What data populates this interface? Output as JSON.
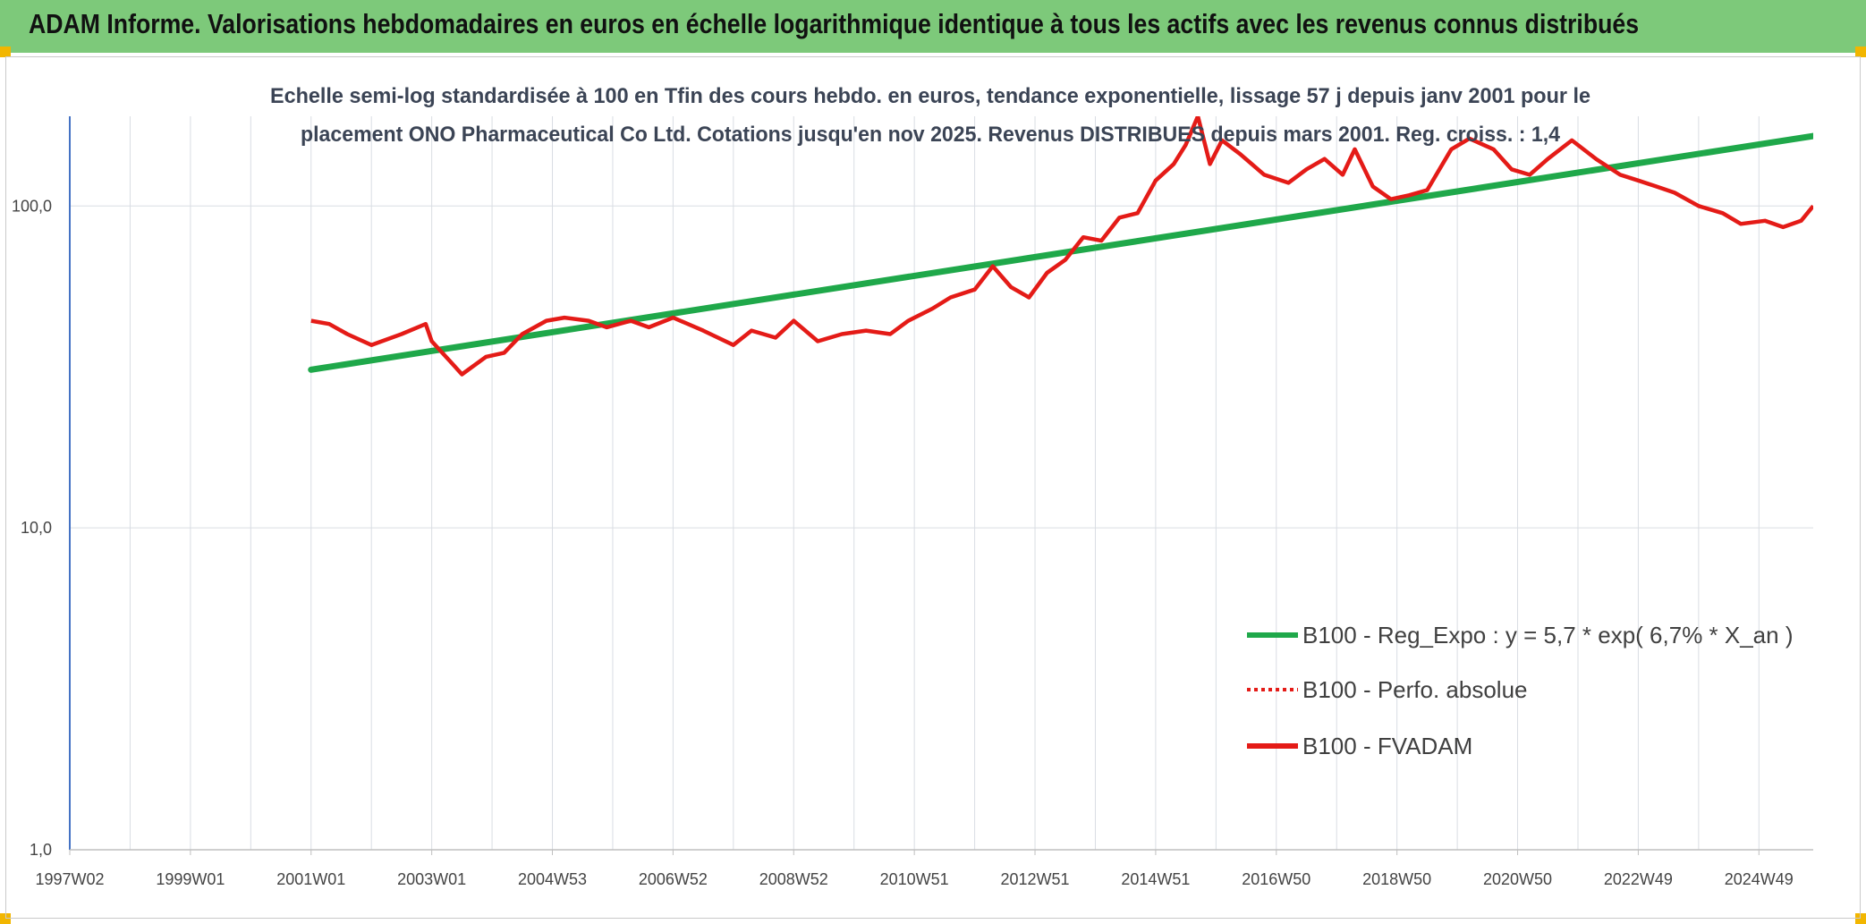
{
  "banner": {
    "title": "ADAM Informe. Valorisations hebdomadaires en euros en échelle logarithmique identique à tous les actifs avec les revenus connus distribués"
  },
  "colors": {
    "banner_bg": "#7dc97a",
    "trend": "#1fa84a",
    "perf": "#e41b17",
    "fvadam": "#e41b17",
    "axis": "#4472c4",
    "grid": "#d9dde3"
  },
  "chart_data": {
    "type": "line",
    "title_lines": [
      "Echelle semi-log standardisée à 100 en Tfin des cours hebdo. en euros, tendance exponentielle, lissage 57 j depuis janv 2001 pour le",
      "placement ONO Pharmaceutical Co Ltd. Cotations jusqu'en nov 2025. Revenus DISTRIBUES depuis mars 2001. Reg. croiss. : 1,4"
    ],
    "y_scale": "log",
    "ylim": [
      1,
      190
    ],
    "xlim": [
      1997.0,
      2025.9
    ],
    "y_ticks": [
      {
        "value": 1,
        "label": "1,0"
      },
      {
        "value": 10,
        "label": "10,0"
      },
      {
        "value": 100,
        "label": "100,0"
      }
    ],
    "x_ticks": [
      {
        "value": 1997.0,
        "label": "1997W02"
      },
      {
        "value": 1999.0,
        "label": "1999W01"
      },
      {
        "value": 2001.0,
        "label": "2001W01"
      },
      {
        "value": 2003.0,
        "label": "2003W01"
      },
      {
        "value": 2005.0,
        "label": "2004W53"
      },
      {
        "value": 2007.0,
        "label": "2006W52"
      },
      {
        "value": 2009.0,
        "label": "2008W52"
      },
      {
        "value": 2011.0,
        "label": "2010W51"
      },
      {
        "value": 2013.0,
        "label": "2012W51"
      },
      {
        "value": 2015.0,
        "label": "2014W51"
      },
      {
        "value": 2017.0,
        "label": "2016W50"
      },
      {
        "value": 2019.0,
        "label": "2018W50"
      },
      {
        "value": 2021.0,
        "label": "2020W50"
      },
      {
        "value": 2023.0,
        "label": "2022W49"
      },
      {
        "value": 2025.0,
        "label": "2024W49"
      }
    ],
    "grid": true,
    "legend_position": "bottom-right",
    "series": [
      {
        "name": "B100 - Reg_Expo : y = 5,7 * exp( 6,7% *  X_an )",
        "style": "solid-thick",
        "x": [
          2001.0,
          2025.9
        ],
        "y": [
          31,
          165
        ]
      },
      {
        "name": "B100 - Perfo. absolue",
        "style": "dotted",
        "x": [],
        "y": []
      },
      {
        "name": "B100 - FVADAM",
        "style": "solid",
        "x": [
          2001.0,
          2001.3,
          2001.6,
          2002.0,
          2002.5,
          2002.9,
          2003.0,
          2003.3,
          2003.5,
          2003.9,
          2004.2,
          2004.5,
          2004.9,
          2005.2,
          2005.6,
          2005.9,
          2006.3,
          2006.6,
          2007.0,
          2007.5,
          2008.0,
          2008.3,
          2008.7,
          2009.0,
          2009.4,
          2009.8,
          2010.2,
          2010.6,
          2010.9,
          2011.3,
          2011.6,
          2012.0,
          2012.3,
          2012.6,
          2012.9,
          2013.2,
          2013.5,
          2013.8,
          2014.1,
          2014.4,
          2014.7,
          2015.0,
          2015.3,
          2015.5,
          2015.7,
          2015.9,
          2016.1,
          2016.4,
          2016.8,
          2017.2,
          2017.5,
          2017.8,
          2018.1,
          2018.3,
          2018.6,
          2018.9,
          2019.2,
          2019.5,
          2019.9,
          2020.2,
          2020.6,
          2020.9,
          2021.2,
          2021.5,
          2021.9,
          2022.3,
          2022.7,
          2023.0,
          2023.3,
          2023.6,
          2024.0,
          2024.4,
          2024.7,
          2025.1,
          2025.4,
          2025.7,
          2025.9
        ],
        "y": [
          44,
          43,
          40,
          37,
          40,
          43,
          38,
          33,
          30,
          34,
          35,
          40,
          44,
          45,
          44,
          42,
          44,
          42,
          45,
          41,
          37,
          41,
          39,
          44,
          38,
          40,
          41,
          40,
          44,
          48,
          52,
          55,
          65,
          56,
          52,
          62,
          68,
          80,
          78,
          92,
          95,
          120,
          135,
          155,
          190,
          135,
          160,
          145,
          125,
          118,
          130,
          140,
          125,
          150,
          115,
          105,
          108,
          112,
          150,
          162,
          150,
          130,
          125,
          140,
          160,
          140,
          125,
          120,
          115,
          110,
          100,
          95,
          88,
          90,
          86,
          90,
          100
        ]
      }
    ]
  }
}
